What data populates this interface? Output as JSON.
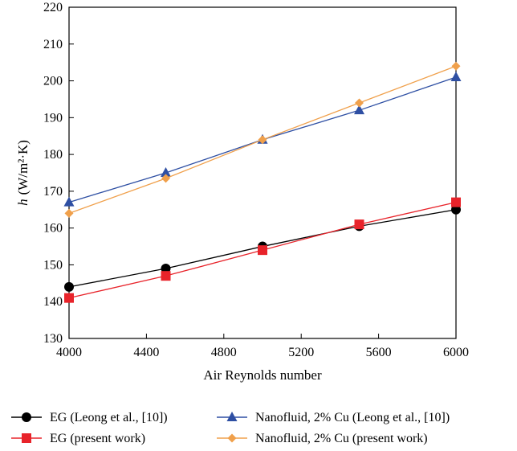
{
  "chart_data": {
    "type": "line",
    "xlabel": "Air Reynolds number",
    "ylabel": {
      "symbol": "h",
      "units": "(W/m²·K)"
    },
    "xlim": [
      4000,
      6000
    ],
    "ylim": [
      130,
      220
    ],
    "xticks": [
      "4000",
      "4400",
      "4800",
      "5200",
      "5600",
      "6000"
    ],
    "yticks": [
      "130",
      "140",
      "150",
      "160",
      "170",
      "180",
      "190",
      "200",
      "210",
      "220"
    ],
    "grid": false,
    "legend_position": "bottom",
    "series": [
      {
        "name": "EG (Leong et al., [10])",
        "color": "#000000",
        "marker": "circle",
        "x": [
          4000,
          4500,
          5000,
          5500,
          6000
        ],
        "y": [
          144,
          149,
          155,
          160.5,
          165
        ]
      },
      {
        "name": "EG (present work)",
        "color": "#e8232a",
        "marker": "square",
        "x": [
          4000,
          4500,
          5000,
          5500,
          6000
        ],
        "y": [
          141,
          147,
          154,
          161,
          167
        ]
      },
      {
        "name": "Nanofluid, 2% Cu (Leong et al., [10])",
        "color": "#2e4fa3",
        "marker": "triangle",
        "x": [
          4000,
          4500,
          5000,
          5500,
          6000
        ],
        "y": [
          167,
          175,
          184,
          192,
          201
        ]
      },
      {
        "name": "Nanofluid, 2% Cu (present work)",
        "color": "#f0a04b",
        "marker": "diamond",
        "x": [
          4000,
          4500,
          5000,
          5500,
          6000
        ],
        "y": [
          164,
          173.5,
          184,
          194,
          204
        ]
      }
    ]
  }
}
